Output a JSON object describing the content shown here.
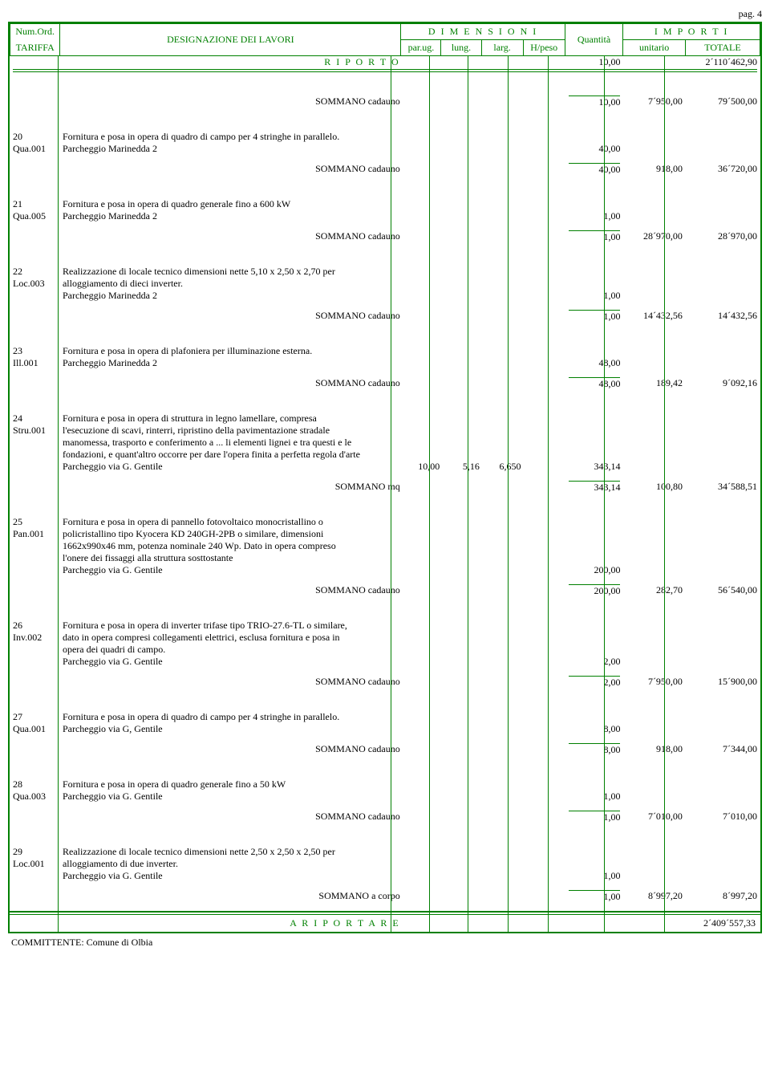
{
  "page_label": "pag. 4",
  "header": {
    "num_ord": "Num.Ord.",
    "tariffa": "TARIFFA",
    "designazione": "DESIGNAZIONE DEI LAVORI",
    "dimensioni": "D I M E N S I O N I",
    "parug": "par.ug.",
    "lung": "lung.",
    "larg": "larg.",
    "hpeso": "H/peso",
    "quantita": "Quantità",
    "importi": "I M P O R T I",
    "unitario": "unitario",
    "totale": "TOTALE"
  },
  "riporto": {
    "label": "R I P O R T O",
    "qta": "10,00",
    "tot": "2´110´462,90"
  },
  "items": [
    {
      "pre_sum": {
        "label": "SOMMANO cadauno",
        "qta": "10,00",
        "unit": "7´950,00",
        "tot": "79´500,00"
      }
    },
    {
      "num": "20",
      "tar": "Qua.001",
      "desc": [
        "Fornitura e posa in opera di quadro di campo per 4 stringhe in parallelo.",
        "Parcheggio Marinedda 2"
      ],
      "qta_line": "40,00",
      "sum": {
        "label": "SOMMANO cadauno",
        "qta": "40,00",
        "unit": "918,00",
        "tot": "36´720,00"
      }
    },
    {
      "num": "21",
      "tar": "Qua.005",
      "desc": [
        "Fornitura e posa in opera di quadro generale fino a 600 kW",
        "Parcheggio Marinedda 2"
      ],
      "qta_line": "1,00",
      "sum": {
        "label": "SOMMANO cadauno",
        "qta": "1,00",
        "unit": "28´970,00",
        "tot": "28´970,00"
      }
    },
    {
      "num": "22",
      "tar": "Loc.003",
      "desc": [
        "Realizzazione di locale tecnico dimensioni nette 5,10 x 2,50 x 2,70 per",
        "alloggiamento di dieci inverter.",
        "Parcheggio Marinedda 2"
      ],
      "qta_line": "1,00",
      "sum": {
        "label": "SOMMANO cadauno",
        "qta": "1,00",
        "unit": "14´432,56",
        "tot": "14´432,56"
      }
    },
    {
      "num": "23",
      "tar": "Ill.001",
      "desc": [
        "Fornitura e posa in opera di plafoniera per illuminazione esterna.",
        "Parcheggio Marinedda 2"
      ],
      "qta_line": "48,00",
      "sum": {
        "label": "SOMMANO cadauno",
        "qta": "48,00",
        "unit": "189,42",
        "tot": "9´092,16"
      }
    },
    {
      "num": "24",
      "tar": "Stru.001",
      "desc": [
        "Fornitura e posa in opera di struttura in legno lamellare, compresa",
        "l'esecuzione di scavi, rinterri, ripristino della pavimentazione stradale",
        "manomessa, trasporto e conferimento a  ... li elementi lignei e tra questi e le",
        "fondazioni, e quant'altro occorre per dare l'opera finita a perfetta regola d'arte",
        "Parcheggio via G. Gentile"
      ],
      "dims": {
        "parug": "10,00",
        "lung": "5,16",
        "larg": "6,650"
      },
      "qta_line": "343,14",
      "sum": {
        "label": "SOMMANO mq",
        "qta": "343,14",
        "unit": "100,80",
        "tot": "34´588,51"
      }
    },
    {
      "num": "25",
      "tar": "Pan.001",
      "desc": [
        "Fornitura e posa in opera di pannello fotovoltaico monocristallino o",
        "policristallino tipo Kyocera KD 240GH-2PB o similare, dimensioni",
        "1662x990x46 mm, potenza nominale 240 Wp. Dato in opera compreso",
        "l'onere dei fissaggi alla struttura sosttostante",
        "Parcheggio via G. Gentile"
      ],
      "qta_line": "200,00",
      "sum": {
        "label": "SOMMANO cadauno",
        "qta": "200,00",
        "unit": "282,70",
        "tot": "56´540,00"
      }
    },
    {
      "num": "26",
      "tar": "Inv.002",
      "desc": [
        "Fornitura e posa in opera di inverter trifase tipo TRIO-27.6-TL o similare,",
        "dato in opera compresi collegamenti elettrici, esclusa fornitura e posa in",
        "opera dei quadri di campo.",
        "Parcheggio via G. Gentile"
      ],
      "qta_line": "2,00",
      "sum": {
        "label": "SOMMANO cadauno",
        "qta": "2,00",
        "unit": "7´950,00",
        "tot": "15´900,00"
      }
    },
    {
      "num": "27",
      "tar": "Qua.001",
      "desc": [
        "Fornitura e posa in opera di quadro di campo per 4 stringhe in parallelo.",
        "Parcheggio via G, Gentile"
      ],
      "qta_line": "8,00",
      "sum": {
        "label": "SOMMANO cadauno",
        "qta": "8,00",
        "unit": "918,00",
        "tot": "7´344,00"
      }
    },
    {
      "num": "28",
      "tar": "Qua.003",
      "desc": [
        "Fornitura e posa in opera di quadro generale fino a 50 kW",
        "Parcheggio via G. Gentile"
      ],
      "qta_line": "1,00",
      "sum": {
        "label": "SOMMANO cadauno",
        "qta": "1,00",
        "unit": "7´010,00",
        "tot": "7´010,00"
      }
    },
    {
      "num": "29",
      "tar": "Loc.001",
      "desc": [
        "Realizzazione di locale tecnico dimensioni nette 2,50 x 2,50 x 2,50 per",
        "alloggiamento di due inverter.",
        "Parcheggio via G. Gentile"
      ],
      "qta_line": "1,00",
      "sum": {
        "label": "SOMMANO a corpo",
        "qta": "1,00",
        "unit": "8´997,20",
        "tot": "8´997,20"
      }
    }
  ],
  "ariportare": {
    "label": "A   R I P O R T A R E",
    "tot": "2´409´557,33"
  },
  "committente": "COMMITTENTE: Comune di Olbia"
}
